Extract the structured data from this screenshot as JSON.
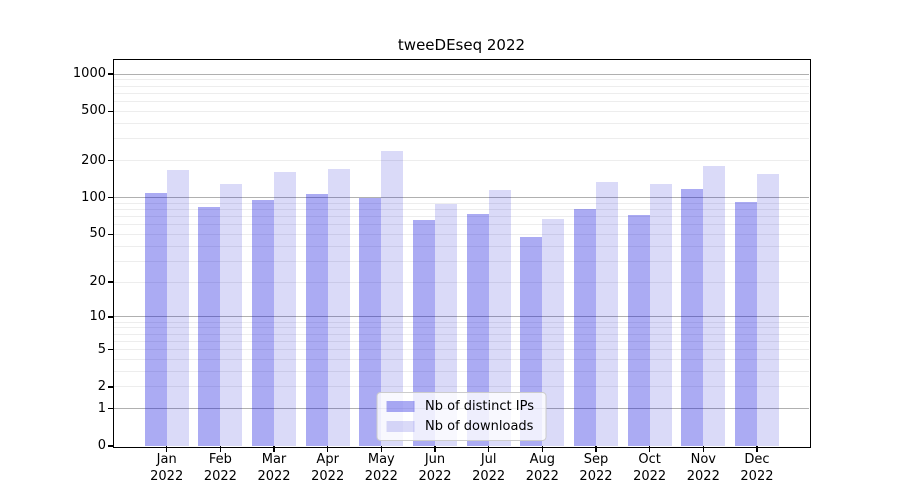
{
  "title": "tweeDEseq 2022",
  "chart_data": {
    "type": "bar",
    "title": "tweeDEseq 2022",
    "categories": [
      "Jan 2022",
      "Feb 2022",
      "Mar 2022",
      "Apr 2022",
      "May 2022",
      "Jun 2022",
      "Jul 2022",
      "Aug 2022",
      "Sep 2022",
      "Oct 2022",
      "Nov 2022",
      "Dec 2022"
    ],
    "series": [
      {
        "name": "Nb of distinct IPs",
        "color": "rgba(0,0,220,0.33)",
        "color_hex": "#aaaaf3",
        "values": [
          108,
          84,
          95,
          107,
          100,
          66,
          73,
          48,
          81,
          72,
          117,
          92
        ]
      },
      {
        "name": "Nb of downloads",
        "color": "rgba(0,0,210,0.145)",
        "color_hex": "#dcdcf9",
        "values": [
          168,
          128,
          160,
          172,
          240,
          88,
          116,
          67,
          134,
          130,
          182,
          157
        ]
      }
    ],
    "xlabel": "",
    "ylabel": "",
    "yscale": "log10(value+1)",
    "yticks": [
      1000,
      500,
      200,
      100,
      50,
      20,
      10,
      5,
      2,
      1,
      0
    ],
    "ylim": [
      0,
      1300
    ],
    "grid": true,
    "grid_minor_color": "#ededed",
    "grid_major_color": "#b0b0b0",
    "axis_color": "#000000",
    "legend_position": "lower center"
  }
}
